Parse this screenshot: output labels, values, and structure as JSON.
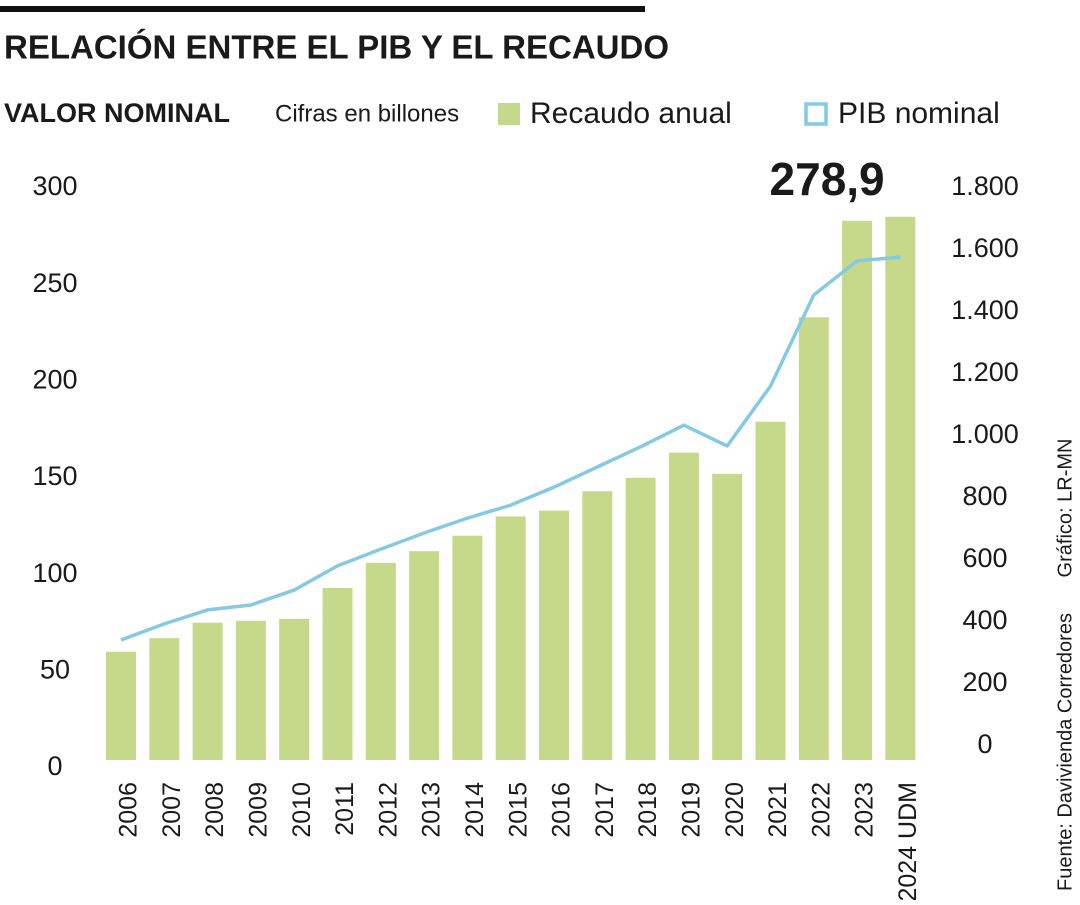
{
  "chart_data": {
    "type": "bar_line",
    "title": "RELACIÓN ENTRE EL PIB Y EL RECAUDO",
    "subtitle": "VALOR NOMINAL",
    "unit_note": "Cifras en billones",
    "credit": "Gráfico: LR-MN",
    "source": "Fuente: Davivienda Corredores",
    "categories": [
      "2006",
      "2007",
      "2008",
      "2009",
      "2010",
      "2011",
      "2012",
      "2013",
      "2014",
      "2015",
      "2016",
      "2017",
      "2018",
      "2019",
      "2020",
      "2021",
      "2022",
      "2023",
      "2024 UDM"
    ],
    "series": [
      {
        "name": "Recaudo anual",
        "color": "#c6d98b",
        "values": [
          56,
          63,
          71,
          72,
          73,
          89,
          102,
          108,
          116,
          126,
          129,
          139,
          146,
          159,
          148,
          175,
          229,
          278.9,
          281
        ],
        "value_labels": [
          null,
          null,
          null,
          null,
          null,
          null,
          null,
          null,
          null,
          null,
          null,
          null,
          null,
          null,
          null,
          null,
          null,
          "278,9",
          null
        ]
      },
      {
        "name": "PIB nominal",
        "color": "#86c9e2",
        "axis": "y2",
        "values": [
          342,
          394,
          439,
          455,
          503,
          581,
          635,
          687,
          735,
          777,
          835,
          900,
          965,
          1035,
          968,
          1161,
          1455,
          1565,
          1577
        ]
      }
    ],
    "ylim": [
      0,
      300
    ],
    "yticks": [
      0,
      50,
      100,
      150,
      200,
      250,
      300
    ],
    "y2lim": [
      0,
      1800
    ],
    "y2ticks": [
      0,
      200,
      400,
      600,
      800,
      {
        "value": 1000,
        "label": "1.000"
      },
      {
        "value": 1200,
        "label": "1.200"
      },
      {
        "value": 1400,
        "label": "1.400"
      },
      {
        "value": 1600,
        "label": "1.600"
      },
      {
        "value": 1800,
        "label": "1.800"
      }
    ]
  }
}
